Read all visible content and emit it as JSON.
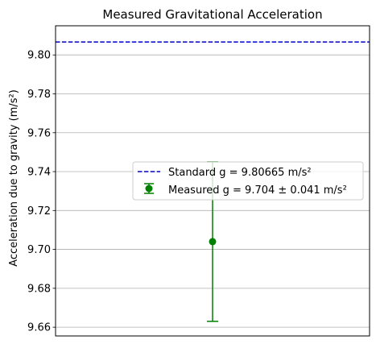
{
  "chart_data": {
    "type": "scatter",
    "title": "Measured Gravitational Acceleration",
    "xlabel": "",
    "ylabel": "Acceleration due to gravity (m/s²)",
    "ylim": [
      9.6555,
      9.815
    ],
    "yticks": [
      "9.66",
      "9.68",
      "9.70",
      "9.72",
      "9.74",
      "9.76",
      "9.78",
      "9.80"
    ],
    "grid": "y-only",
    "x_ticks_visible": false,
    "reference_line": {
      "label": "Standard g = 9.80665 m/s²",
      "value": 9.80665,
      "style": "dashed",
      "color": "#0000cc"
    },
    "measurement": {
      "label": "Measured g = 9.704 ± 0.041 m/s²",
      "value": 9.704,
      "error": 0.041,
      "color": "#008000"
    },
    "legend": {
      "position": "center-right"
    }
  }
}
